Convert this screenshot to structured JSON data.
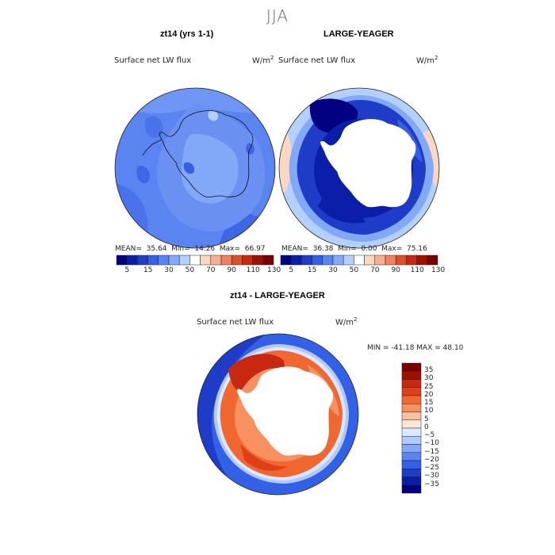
{
  "figure_title": "JJA",
  "panels": [
    {
      "title": "zt14 (yrs 1-1)",
      "subtitle": "Surface net LW flux",
      "units": "W/m",
      "units_sup": "2",
      "stats": {
        "mean_label": "MEAN=",
        "mean": "35.64",
        "min_label": "Min=",
        "min": "14.26",
        "max_label": "Max=",
        "max": "66.97"
      }
    },
    {
      "title": "LARGE-YEAGER",
      "subtitle": "Surface net LW flux",
      "units": "W/m",
      "units_sup": "2",
      "stats": {
        "mean_label": "MEAN=",
        "mean": "36.38",
        "min_label": "Min=",
        "min": "0.00",
        "max_label": "Max=",
        "max": "75.16"
      }
    },
    {
      "title": "zt14 - LARGE-YEAGER",
      "subtitle": "Surface net LW flux",
      "units": "W/m",
      "units_sup": "2",
      "stats_text": "MIN = -41.18 MAX =  48.10"
    }
  ],
  "top_colorbar": {
    "colors": [
      "#000080",
      "#0a1ea8",
      "#1e3cc8",
      "#3260e6",
      "#5a84f0",
      "#82a8f8",
      "#b4d0ff",
      "#ffffff",
      "#fcd8c0",
      "#f8b090",
      "#f08060",
      "#e05028",
      "#c82810",
      "#a01000",
      "#780000"
    ],
    "labels": [
      "5",
      "15",
      "30",
      "50",
      "70",
      "90",
      "110",
      "130"
    ]
  },
  "diff_colorbar": {
    "colors": [
      "#780000",
      "#a01000",
      "#c82810",
      "#e04018",
      "#f06830",
      "#f89060",
      "#fcc0a0",
      "#fde6d8",
      "#dce8ff",
      "#b0ccff",
      "#86a8f8",
      "#5a84f0",
      "#3260e6",
      "#1e3cc8",
      "#0a1ea8",
      "#000080"
    ],
    "labels": [
      "35",
      "30",
      "25",
      "20",
      "15",
      "10",
      "5",
      "0",
      "−5",
      "−10",
      "−15",
      "−20",
      "−25",
      "−30",
      "−35"
    ]
  }
}
